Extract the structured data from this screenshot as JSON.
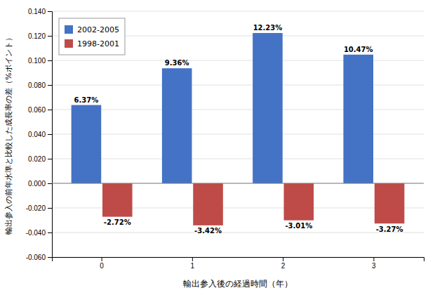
{
  "chart_data": {
    "type": "bar",
    "categories": [
      "0",
      "1",
      "2",
      "3"
    ],
    "series": [
      {
        "name": "2002-2005",
        "color": "#4472C4",
        "values": [
          0.0637,
          0.0936,
          0.1223,
          0.1047
        ],
        "value_labels": [
          "6.37%",
          "9.36%",
          "12.23%",
          "10.47%"
        ]
      },
      {
        "name": "1998-2001",
        "color": "#BE4B48",
        "values": [
          -0.0272,
          -0.0342,
          -0.0301,
          -0.0327
        ],
        "value_labels": [
          "-2.72%",
          "-3.42%",
          "-3.01%",
          "-3.27%"
        ]
      }
    ],
    "xlabel": "輸出参入後の経過時間（年）",
    "ylabel": "輸出参入の前年水準と比較した成長率の差（%ポイント）",
    "ylim": [
      -0.06,
      0.14
    ],
    "yticks": [
      {
        "value": -0.06,
        "label": "-0.060"
      },
      {
        "value": -0.04,
        "label": "-0.040"
      },
      {
        "value": -0.02,
        "label": "-0.020"
      },
      {
        "value": 0.0,
        "label": "0.000"
      },
      {
        "value": 0.02,
        "label": "0.020"
      },
      {
        "value": 0.04,
        "label": "0.040"
      },
      {
        "value": 0.06,
        "label": "0.060"
      },
      {
        "value": 0.08,
        "label": "0.080"
      },
      {
        "value": 0.1,
        "label": "0.100"
      },
      {
        "value": 0.12,
        "label": "0.120"
      },
      {
        "value": 0.14,
        "label": "0.140"
      }
    ],
    "grid": true,
    "legend": "upper left",
    "data_labels": true
  }
}
